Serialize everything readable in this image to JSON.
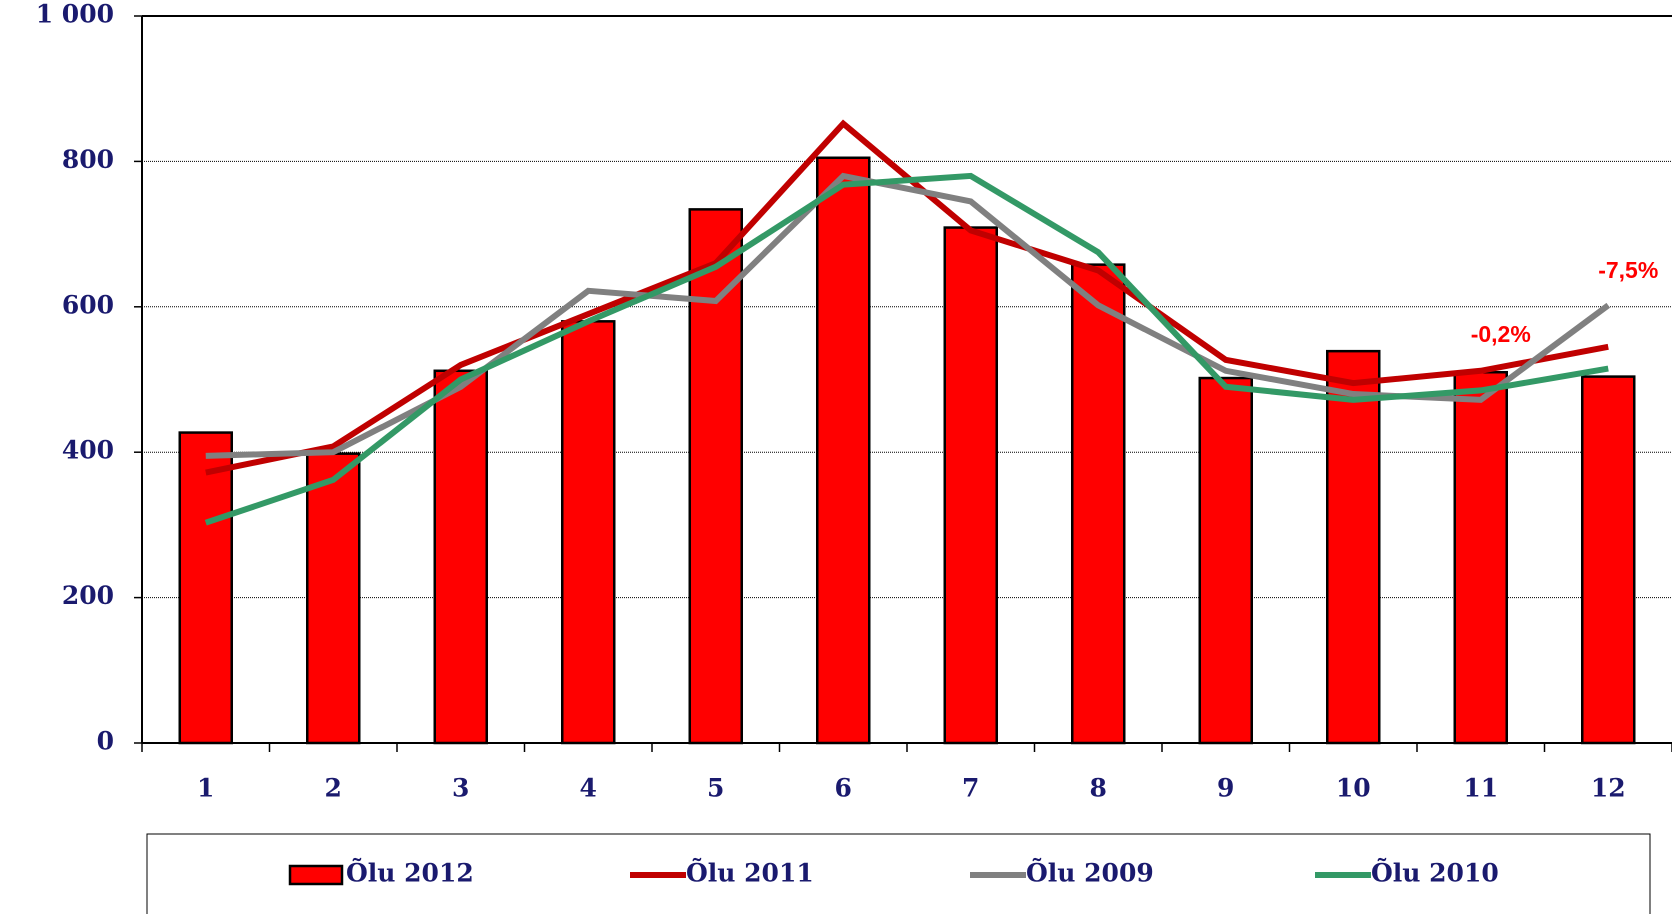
{
  "chart_data": {
    "type": "bar-line",
    "categories": [
      "1",
      "2",
      "3",
      "4",
      "5",
      "6",
      "7",
      "8",
      "9",
      "10",
      "11",
      "12"
    ],
    "series": [
      {
        "name": "Õlu 2012",
        "type": "bar",
        "color": "#ff0000",
        "values": [
          427,
          398,
          512,
          580,
          734,
          805,
          709,
          658,
          502,
          539,
          510,
          504
        ]
      },
      {
        "name": "Õlu 2011",
        "type": "line",
        "color": "#c00000",
        "values": [
          372,
          408,
          520,
          590,
          660,
          852,
          705,
          650,
          527,
          495,
          512,
          545
        ]
      },
      {
        "name": "Õlu 2009",
        "type": "line",
        "color": "#808080",
        "values": [
          395,
          400,
          490,
          622,
          608,
          780,
          745,
          602,
          512,
          480,
          472,
          602
        ]
      },
      {
        "name": "Õlu 2010",
        "type": "line",
        "color": "#339966",
        "values": [
          303,
          362,
          500,
          580,
          655,
          768,
          780,
          675,
          490,
          472,
          485,
          515
        ]
      }
    ],
    "annotations": [
      "-0,2%",
      "-7,5%"
    ],
    "ylim": [
      0,
      1000
    ],
    "yticks": [
      0,
      200,
      400,
      600,
      800,
      {
        "value": 1000,
        "label": "1 000"
      }
    ],
    "grid": true,
    "legend": "bottom"
  }
}
